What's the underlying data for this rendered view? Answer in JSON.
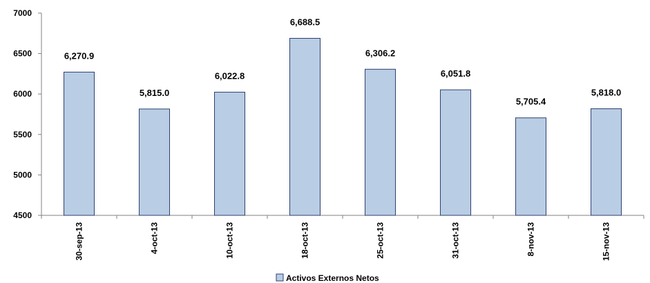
{
  "chart_data": {
    "type": "bar",
    "categories": [
      "30-sep-13",
      "4-oct-13",
      "10-oct-13",
      "18-oct-13",
      "25-oct-13",
      "31-oct-13",
      "8-nov-13",
      "15-nov-13"
    ],
    "series": [
      {
        "name": "Activos Externos Netos",
        "values": [
          6270.9,
          5815.0,
          6022.8,
          6688.5,
          6306.2,
          6051.8,
          5705.4,
          5818.0
        ],
        "value_labels": [
          "6,270.9",
          "5,815.0",
          "6,022.8",
          "6,688.5",
          "6,306.2",
          "6,051.8",
          "5,705.4",
          "5,818.0"
        ]
      }
    ],
    "ylim": [
      4500,
      7000
    ],
    "yticks": [
      "4500",
      "5000",
      "5500",
      "6000",
      "6500",
      "7000"
    ],
    "grid": false,
    "legend": "bottom-center",
    "bar_color": "#b9cde4",
    "bar_border": "#2f3f6f"
  }
}
